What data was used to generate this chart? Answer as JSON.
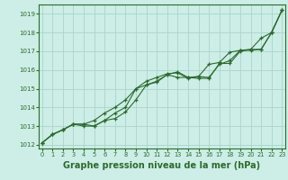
{
  "bg_color": "#cceee6",
  "grid_color": "#aad4ca",
  "line_color": "#2d6a2d",
  "marker_color": "#2d6a2d",
  "xlabel": "Graphe pression niveau de la mer (hPa)",
  "xlabel_fontsize": 7.0,
  "ylim": [
    1011.8,
    1019.5
  ],
  "xlim": [
    -0.3,
    23.3
  ],
  "yticks": [
    1012,
    1013,
    1014,
    1015,
    1016,
    1017,
    1018,
    1019
  ],
  "xticks": [
    0,
    1,
    2,
    3,
    4,
    5,
    6,
    7,
    8,
    9,
    10,
    11,
    12,
    13,
    14,
    15,
    16,
    17,
    18,
    19,
    20,
    21,
    22,
    23
  ],
  "series": [
    [
      1012.1,
      1012.55,
      1012.8,
      1013.1,
      1013.0,
      1013.0,
      1013.3,
      1013.7,
      1014.0,
      1015.0,
      1015.2,
      1015.35,
      1015.75,
      1015.9,
      1015.6,
      1015.55,
      1015.55,
      1016.35,
      1016.35,
      1017.0,
      1017.1,
      1017.1,
      1018.0,
      1019.2
    ],
    [
      1012.1,
      1012.55,
      1012.8,
      1013.1,
      1013.1,
      1013.0,
      1013.3,
      1013.4,
      1013.75,
      1014.4,
      1015.2,
      1015.4,
      1015.75,
      1015.6,
      1015.6,
      1015.65,
      1015.6,
      1016.3,
      1016.5,
      1017.05,
      1017.1,
      1017.7,
      1018.0,
      1019.2
    ],
    [
      1012.1,
      1012.55,
      1012.8,
      1013.1,
      1013.1,
      1013.3,
      1013.7,
      1014.0,
      1014.4,
      1015.0,
      1015.4,
      1015.6,
      1015.8,
      1015.85,
      1015.55,
      1015.65,
      1016.3,
      1016.4,
      1016.95,
      1017.05,
      1017.05,
      1017.1,
      1018.0,
      1019.2
    ]
  ]
}
